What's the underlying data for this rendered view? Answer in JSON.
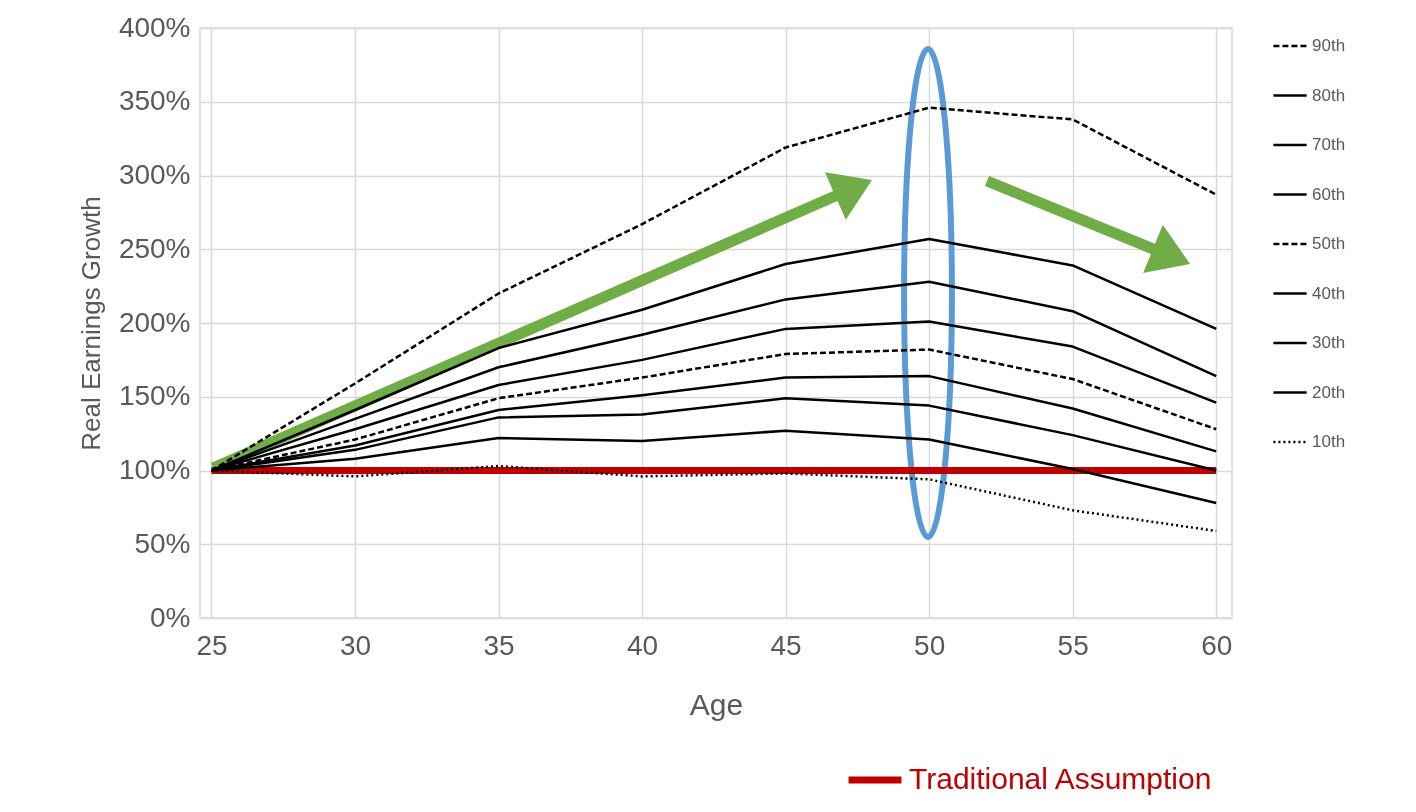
{
  "chart_data": {
    "type": "line",
    "xlabel": "Age",
    "ylabel": "Real Earnings Growth",
    "x": [
      25,
      30,
      35,
      40,
      45,
      50,
      55,
      60
    ],
    "xlim": [
      24.6,
      60.55
    ],
    "xticks": [
      25,
      30,
      35,
      40,
      45,
      50,
      55,
      60
    ],
    "ylim": [
      0,
      400
    ],
    "yticks": [
      {
        "value": 0,
        "label": "0%"
      },
      {
        "value": 50,
        "label": "50%"
      },
      {
        "value": 100,
        "label": "100%"
      },
      {
        "value": 150,
        "label": "150%"
      },
      {
        "value": 200,
        "label": "200%"
      },
      {
        "value": 250,
        "label": "250%"
      },
      {
        "value": 300,
        "label": "300%"
      },
      {
        "value": 350,
        "label": "350%"
      },
      {
        "value": 400,
        "label": "400%"
      }
    ],
    "grid": true,
    "legend": "right",
    "marker": "none",
    "series": [
      {
        "name": "90th",
        "color": "#000000",
        "line_style": "dashed",
        "values": [
          100,
          159,
          220,
          267,
          319,
          346,
          338,
          287
        ]
      },
      {
        "name": "80th",
        "color": "#000000",
        "line_style": "solid",
        "values": [
          100,
          141,
          183,
          209,
          240,
          257,
          239,
          196
        ]
      },
      {
        "name": "70th",
        "color": "#000000",
        "line_style": "solid",
        "values": [
          100,
          135,
          170,
          192,
          216,
          228,
          208,
          164
        ]
      },
      {
        "name": "60th",
        "color": "#000000",
        "line_style": "solid",
        "values": [
          100,
          128,
          158,
          175,
          196,
          201,
          184,
          146
        ]
      },
      {
        "name": "50th",
        "color": "#000000",
        "line_style": "dashed",
        "values": [
          100,
          121,
          149,
          163,
          179,
          182,
          162,
          128
        ]
      },
      {
        "name": "40th",
        "color": "#000000",
        "line_style": "solid",
        "values": [
          100,
          117,
          141,
          151,
          163,
          164,
          142,
          113
        ]
      },
      {
        "name": "30th",
        "color": "#000000",
        "line_style": "solid",
        "values": [
          100,
          114,
          136,
          138,
          149,
          144,
          124,
          100
        ]
      },
      {
        "name": "20th",
        "color": "#000000",
        "line_style": "solid",
        "values": [
          100,
          108,
          122,
          120,
          127,
          121,
          101,
          78
        ]
      },
      {
        "name": "10th",
        "color": "#000000",
        "line_style": "dotted",
        "values": [
          100,
          96,
          103,
          96,
          98,
          94,
          73,
          59
        ]
      },
      {
        "name": "Traditional Assumption",
        "color": "#c00000",
        "line_style": "solid",
        "values": [
          100,
          100,
          100,
          100,
          100,
          100,
          100,
          100
        ]
      }
    ]
  }
}
